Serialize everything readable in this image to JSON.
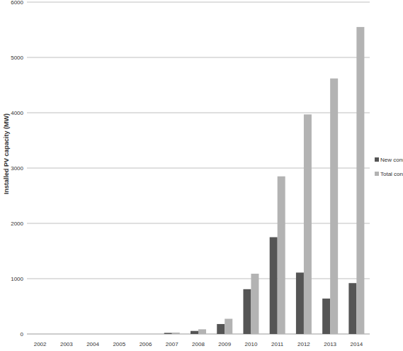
{
  "chart_data": {
    "type": "bar",
    "y_label": "Installed PV capacity (MW)",
    "categories": [
      "2002",
      "2003",
      "2004",
      "2005",
      "2006",
      "2007",
      "2008",
      "2009",
      "2010",
      "2011",
      "2012",
      "2013",
      "2014"
    ],
    "series": [
      {
        "name": "New connect",
        "color": "#555555",
        "values": [
          0,
          0,
          0,
          0,
          0,
          20,
          55,
          180,
          810,
          1750,
          1110,
          640,
          920
        ]
      },
      {
        "name": "Total conned",
        "color": "#b3b3b3",
        "values": [
          0,
          0,
          0,
          0,
          0,
          25,
          85,
          275,
          1090,
          2850,
          3970,
          4620,
          5550
        ]
      }
    ],
    "ylim": [
      0,
      6000
    ],
    "yticks": [
      0,
      1000,
      2000,
      3000,
      4000,
      5000,
      6000
    ],
    "grid": true,
    "legend": "right"
  }
}
